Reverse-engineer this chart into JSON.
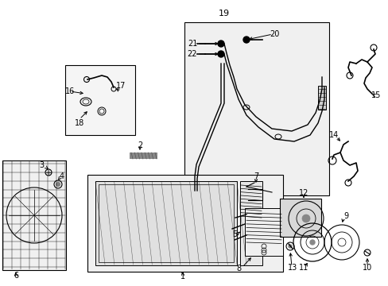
{
  "bg_color": "#ffffff",
  "fig_width": 4.89,
  "fig_height": 3.6,
  "dpi": 100,
  "line_color": "#000000",
  "gray_fill": "#e8e8e8",
  "light_fill": "#f0f0f0"
}
